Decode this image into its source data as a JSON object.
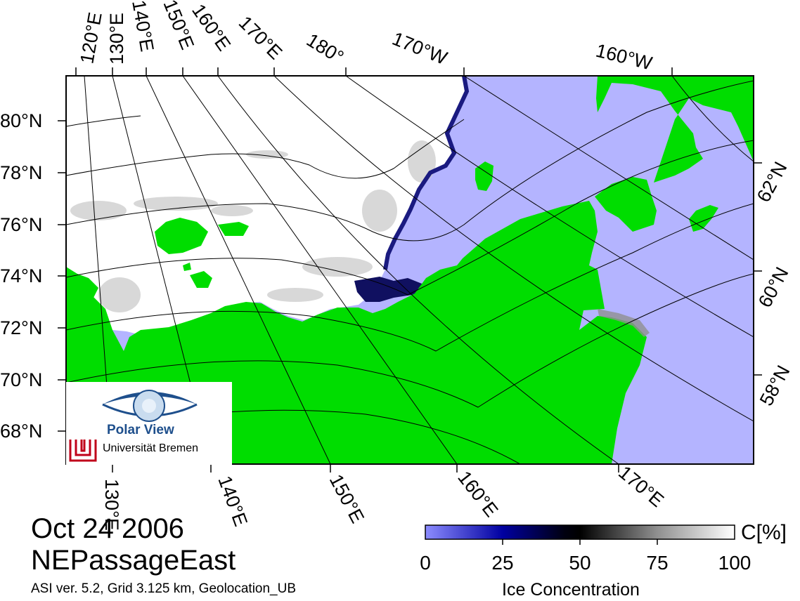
{
  "map": {
    "top_lon_labels": [
      "120°E",
      "130°E",
      "140°E",
      "150°E",
      "160°E",
      "170°E",
      "180°",
      "170°W",
      "160°W"
    ],
    "bottom_lon_labels": [
      "130°E",
      "140°E",
      "150°E",
      "160°E",
      "170°E"
    ],
    "left_lat_labels": [
      "80°N",
      "78°N",
      "76°N",
      "74°N",
      "72°N",
      "70°N",
      "68°N"
    ],
    "right_lat_labels": [
      "62°N",
      "60°N",
      "58°N"
    ],
    "colors": {
      "land": "#00dd00",
      "open_water": "#b4b4ff",
      "ice_full": "#ffffff",
      "frame": "#000000"
    }
  },
  "title": {
    "date": "Oct 24 2006",
    "region": "NEPassageEast"
  },
  "meta": "ASI ver. 5.2,  Grid 3.125 km, Geolocation_UB",
  "colorbar": {
    "unit": "C[%]",
    "title": "Ice Concentration",
    "ticks": [
      "0",
      "25",
      "50",
      "75",
      "100"
    ]
  },
  "logo": {
    "line1": "Polar View",
    "line2": "Universität Bremen"
  }
}
